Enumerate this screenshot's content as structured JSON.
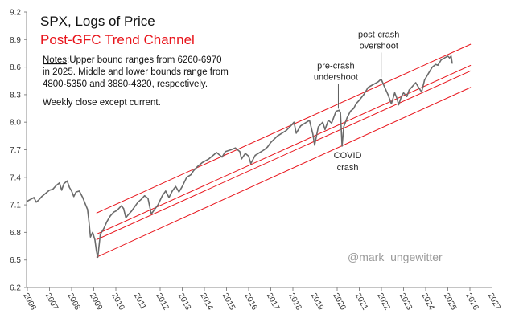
{
  "chart_data": {
    "type": "line",
    "title": "SPX, Logs of Price",
    "subtitle": "Post-GFC Trend Channel",
    "notes": {
      "label": "Notes",
      "lines": [
        ":Upper bound ranges from 6260-6970",
        "in 2025. Middle and lower bounds range from",
        "4800-5350 and 3880-4320, respectively."
      ],
      "extra": "Weekly close except current."
    },
    "watermark": "@mark_ungewitter",
    "xlabel": "",
    "ylabel": "",
    "xlim": [
      2006,
      2027
    ],
    "ylim": [
      6.2,
      9.2
    ],
    "x_ticks": [
      "2006",
      "2007",
      "2008",
      "2009",
      "2010",
      "2011",
      "2012",
      "2013",
      "2014",
      "2015",
      "2016",
      "2017",
      "2018",
      "2019",
      "2020",
      "2021",
      "2022",
      "2023",
      "2024",
      "2025",
      "2026",
      "2027"
    ],
    "y_ticks": [
      "6.2",
      "6.5",
      "6.8",
      "7.1",
      "7.4",
      "7.7",
      "8.0",
      "8.3",
      "8.6",
      "8.9",
      "9.2"
    ],
    "grid": false,
    "colors": {
      "price": "#6b6b6b",
      "channel": "#e8141b",
      "title": "#111111",
      "subtitle": "#e8141b"
    },
    "series": [
      {
        "x": [
          2006.0,
          2006.15,
          2006.3,
          2006.4,
          2006.5,
          2006.65,
          2006.8,
          2007.0,
          2007.15,
          2007.3,
          2007.45,
          2007.55,
          2007.65,
          2007.8,
          2007.9,
          2008.0,
          2008.1,
          2008.2,
          2008.35,
          2008.5,
          2008.6,
          2008.72,
          2008.78,
          2008.85,
          2008.95,
          2009.05,
          2009.12,
          2009.18,
          2009.3,
          2009.45,
          2009.6,
          2009.75,
          2009.9,
          2010.05,
          2010.25,
          2010.35,
          2010.45,
          2010.55,
          2010.7,
          2010.85,
          2011.0,
          2011.15,
          2011.3,
          2011.45,
          2011.6,
          2011.75,
          2011.9,
          2012.1,
          2012.25,
          2012.4,
          2012.55,
          2012.7,
          2012.85,
          2013.0,
          2013.2,
          2013.4,
          2013.5,
          2013.7,
          2013.9,
          2014.05,
          2014.2,
          2014.4,
          2014.55,
          2014.8,
          2014.95,
          2015.2,
          2015.4,
          2015.6,
          2015.68,
          2015.85,
          2016.0,
          2016.1,
          2016.3,
          2016.5,
          2016.7,
          2016.85,
          2017.0,
          2017.3,
          2017.5,
          2017.7,
          2017.9,
          2018.05,
          2018.15,
          2018.35,
          2018.55,
          2018.75,
          2018.9,
          2018.98,
          2019.15,
          2019.35,
          2019.45,
          2019.6,
          2019.75,
          2019.95,
          2020.1,
          2020.15,
          2020.22,
          2020.3,
          2020.45,
          2020.6,
          2020.75,
          2020.85,
          2021.0,
          2021.2,
          2021.4,
          2021.55,
          2021.7,
          2021.85,
          2021.99,
          2022.15,
          2022.3,
          2022.45,
          2022.6,
          2022.7,
          2022.78,
          2022.9,
          2023.0,
          2023.15,
          2023.25,
          2023.4,
          2023.55,
          2023.7,
          2023.82,
          2023.95,
          2024.1,
          2024.3,
          2024.45,
          2024.55,
          2024.7,
          2024.85,
          2025.0,
          2025.08,
          2025.15,
          2025.2
        ],
        "y": [
          7.14,
          7.16,
          7.18,
          7.13,
          7.15,
          7.19,
          7.22,
          7.26,
          7.27,
          7.31,
          7.34,
          7.26,
          7.33,
          7.36,
          7.29,
          7.25,
          7.19,
          7.24,
          7.25,
          7.18,
          7.12,
          7.05,
          6.93,
          6.75,
          6.8,
          6.72,
          6.6,
          6.53,
          6.78,
          6.84,
          6.92,
          6.98,
          7.02,
          7.04,
          7.09,
          7.06,
          6.96,
          6.99,
          7.03,
          7.08,
          7.13,
          7.16,
          7.2,
          7.17,
          7.0,
          7.05,
          7.1,
          7.2,
          7.25,
          7.18,
          7.25,
          7.3,
          7.24,
          7.3,
          7.4,
          7.43,
          7.47,
          7.52,
          7.56,
          7.58,
          7.6,
          7.64,
          7.67,
          7.62,
          7.68,
          7.7,
          7.72,
          7.68,
          7.6,
          7.66,
          7.63,
          7.55,
          7.64,
          7.67,
          7.7,
          7.73,
          7.78,
          7.85,
          7.88,
          7.91,
          7.96,
          8.0,
          7.88,
          7.96,
          7.99,
          8.02,
          7.87,
          7.75,
          7.95,
          8.0,
          7.92,
          8.02,
          7.99,
          8.12,
          8.13,
          8.1,
          7.74,
          7.95,
          8.05,
          8.12,
          8.15,
          8.2,
          8.24,
          8.3,
          8.38,
          8.4,
          8.42,
          8.44,
          8.47,
          8.38,
          8.3,
          8.2,
          8.32,
          8.26,
          8.19,
          8.28,
          8.32,
          8.28,
          8.35,
          8.39,
          8.43,
          8.37,
          8.33,
          8.46,
          8.52,
          8.6,
          8.63,
          8.62,
          8.68,
          8.7,
          8.72,
          8.7,
          8.72,
          8.64
        ]
      }
    ],
    "channel_lines": [
      {
        "x": [
          2009.12,
          2026.04
        ],
        "y": [
          7.01,
          8.85
        ]
      },
      {
        "x": [
          2009.12,
          2026.04
        ],
        "y": [
          6.78,
          8.62
        ]
      },
      {
        "x": [
          2009.12,
          2026.04
        ],
        "y": [
          6.72,
          8.56
        ]
      },
      {
        "x": [
          2009.12,
          2026.04
        ],
        "y": [
          6.53,
          8.38
        ]
      }
    ],
    "annotations": [
      {
        "lines": [
          "pre-crash",
          "undershoot"
        ],
        "x": 2020.05,
        "y": 8.13,
        "position": "above"
      },
      {
        "lines": [
          "post-crash",
          "overshoot"
        ],
        "x": 2021.99,
        "y": 8.47,
        "position": "above"
      },
      {
        "lines": [
          "COVID",
          "crash"
        ],
        "x": 2020.22,
        "y": 7.74,
        "position": "below"
      }
    ]
  }
}
